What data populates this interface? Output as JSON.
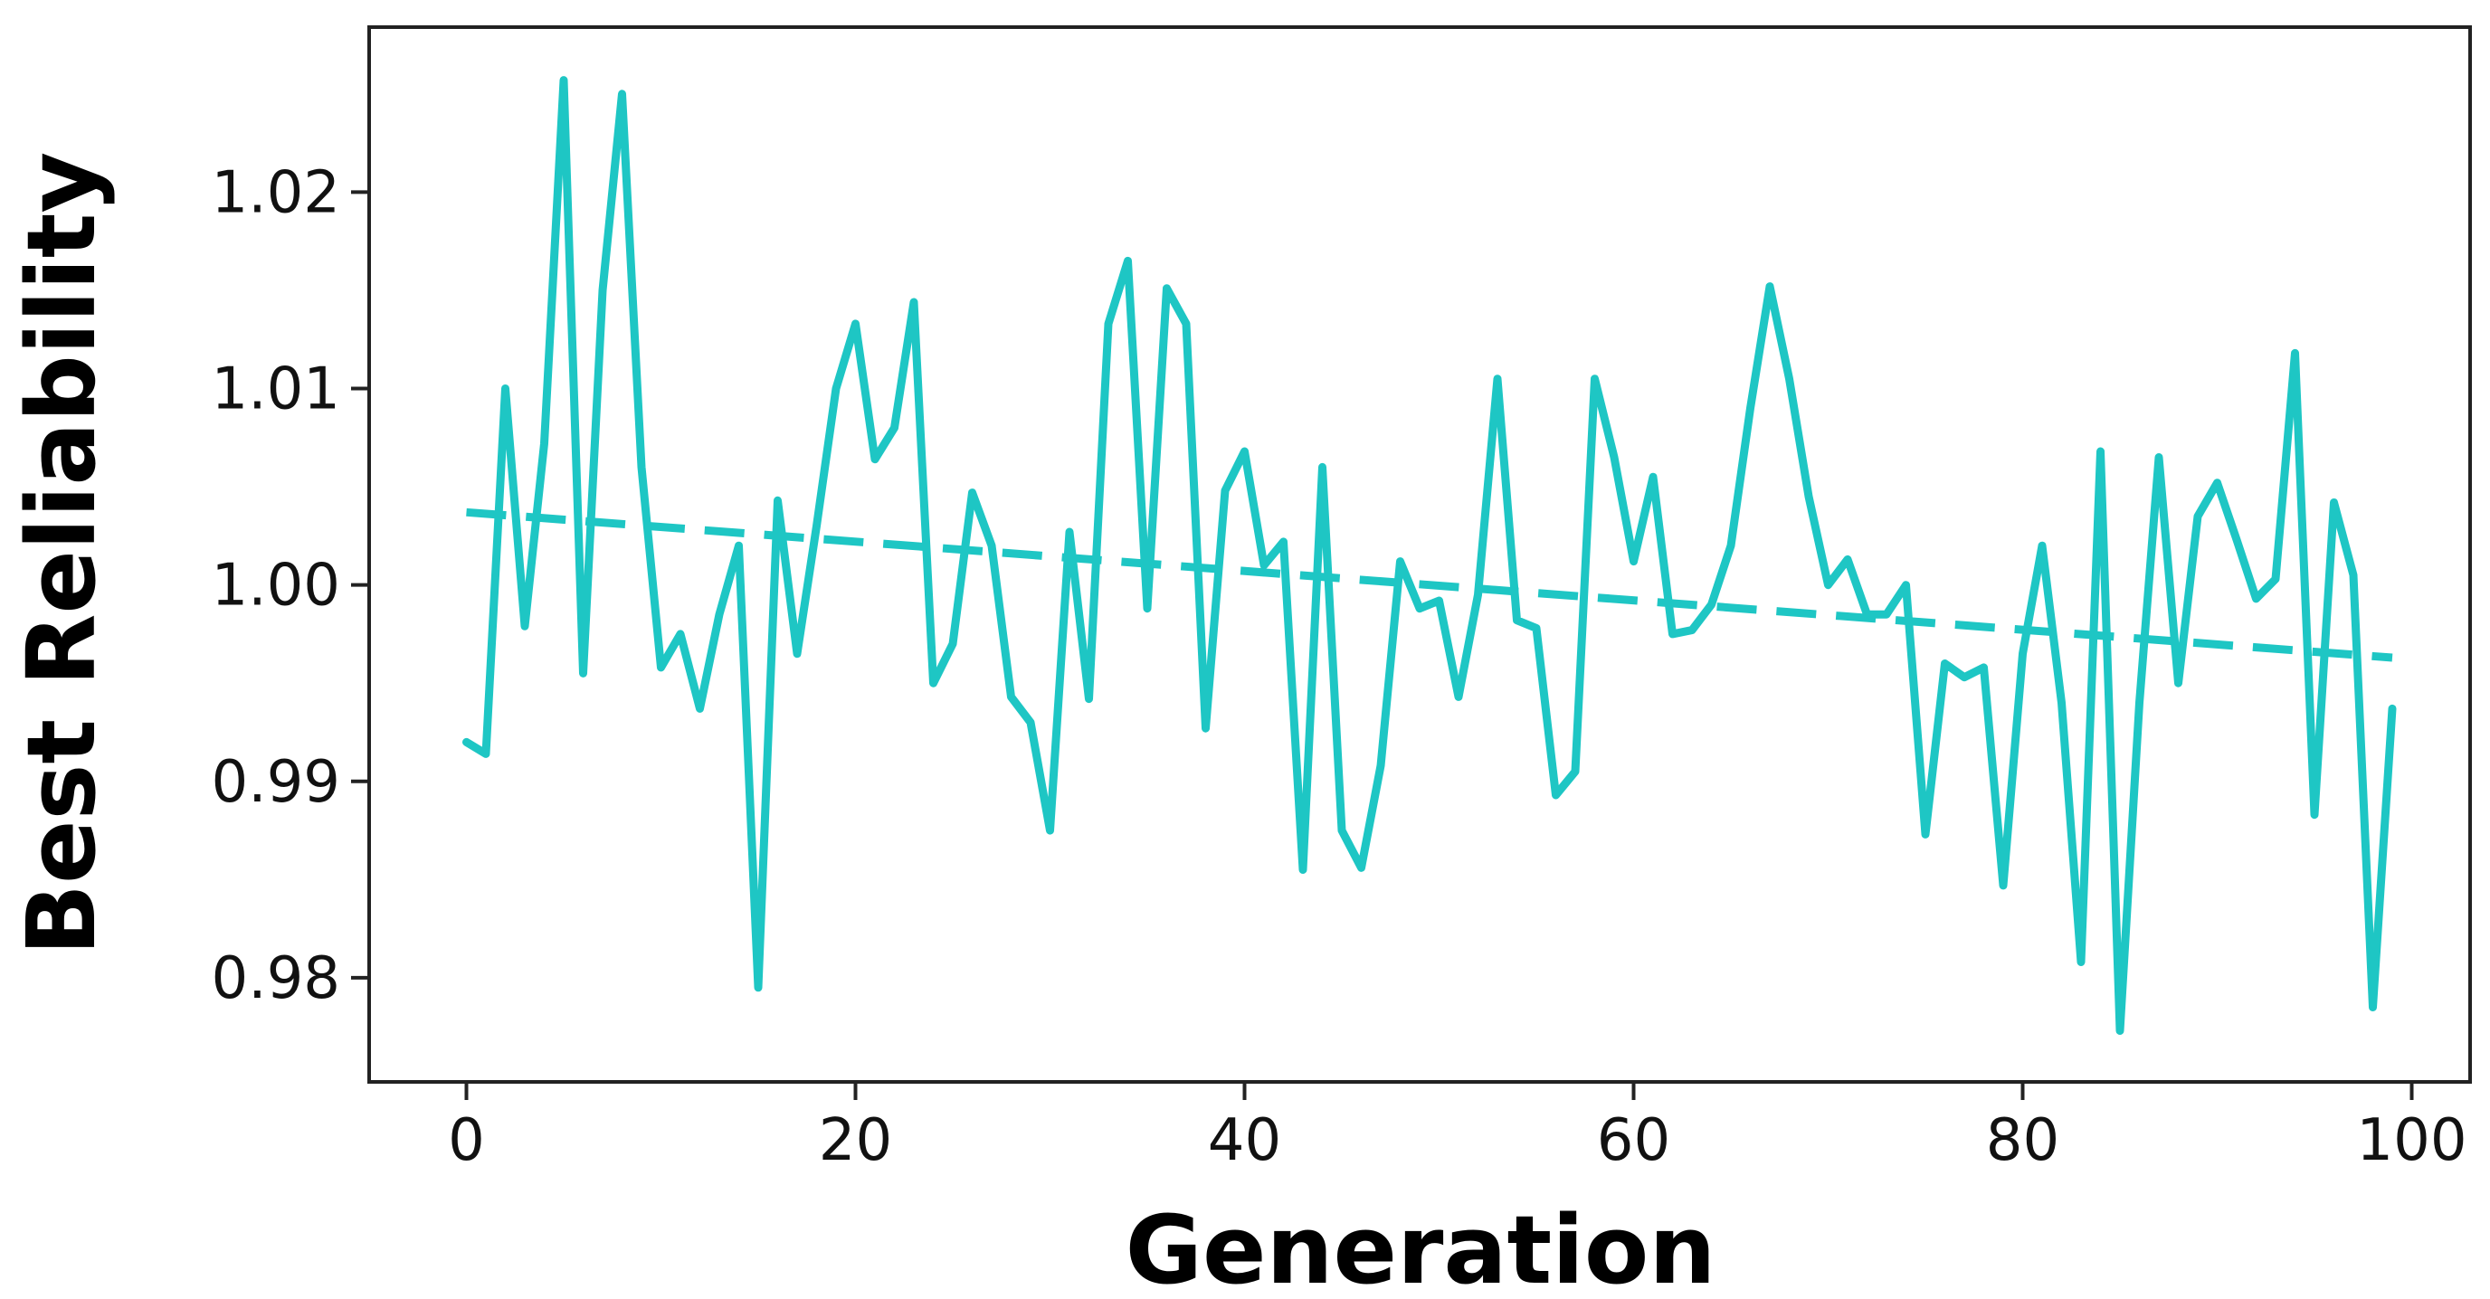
{
  "chart_data": {
    "type": "line",
    "title": "",
    "xlabel": "Generation",
    "ylabel": "Best Reliability",
    "xlim": [
      -5,
      103
    ],
    "ylim": [
      0.9747,
      1.0284
    ],
    "x_ticks": [
      0,
      20,
      40,
      60,
      80,
      100
    ],
    "x_tick_labels": [
      "0",
      "20",
      "40",
      "60",
      "80",
      "100"
    ],
    "y_ticks": [
      0.98,
      0.99,
      1.0,
      1.01,
      1.02
    ],
    "y_tick_labels": [
      "0.98",
      "0.99",
      "1.00",
      "1.01",
      "1.02"
    ],
    "grid": false,
    "legend": "none",
    "colors": {
      "series": "#1ec6c4",
      "axis": "#222222"
    },
    "series": [
      {
        "style": "solid",
        "x": [
          0,
          1,
          2,
          3,
          4,
          5,
          6,
          7,
          8,
          9,
          10,
          11,
          12,
          13,
          14,
          15,
          16,
          17,
          18,
          19,
          20,
          21,
          22,
          23,
          24,
          25,
          26,
          27,
          28,
          29,
          30,
          31,
          32,
          33,
          34,
          35,
          36,
          37,
          38,
          39,
          40,
          41,
          42,
          43,
          44,
          45,
          46,
          47,
          48,
          49,
          50,
          51,
          52,
          53,
          54,
          55,
          56,
          57,
          58,
          59,
          60,
          61,
          62,
          63,
          64,
          65,
          66,
          67,
          68,
          69,
          70,
          71,
          72,
          73,
          74,
          75,
          76,
          77,
          78,
          79,
          80,
          81,
          82,
          83,
          84,
          85,
          86,
          87,
          88,
          89,
          90,
          91,
          92,
          93,
          94,
          95,
          96,
          97,
          98,
          99
        ],
        "values": [
          0.992,
          0.9914,
          1.01,
          0.9979,
          1.0072,
          1.0257,
          0.9955,
          1.015,
          1.025,
          1.006,
          0.9958,
          0.9975,
          0.9937,
          0.9985,
          1.002,
          0.9795,
          1.0043,
          0.9965,
          1.003,
          1.01,
          1.0133,
          1.0064,
          1.008,
          1.0144,
          0.995,
          0.997,
          1.0047,
          1.002,
          0.9943,
          0.993,
          0.9875,
          1.0027,
          0.9942,
          1.0133,
          1.0165,
          0.9988,
          1.0151,
          1.0133,
          0.9927,
          1.0048,
          1.0068,
          1.001,
          1.0022,
          0.9855,
          1.006,
          0.9875,
          0.9856,
          0.9908,
          1.0012,
          0.9988,
          0.9992,
          0.9943,
          0.9995,
          1.0105,
          0.9982,
          0.9978,
          0.9893,
          0.9905,
          1.0105,
          1.0065,
          1.0012,
          1.0055,
          0.9975,
          0.9977,
          0.999,
          1.002,
          1.009,
          1.0152,
          1.0105,
          1.0045,
          1.0,
          1.0013,
          0.9985,
          0.9985,
          1.0,
          0.9873,
          0.996,
          0.9953,
          0.9958,
          0.9847,
          0.9965,
          1.002,
          0.994,
          0.9808,
          1.0068,
          0.9773,
          0.994,
          1.0065,
          0.995,
          1.0035,
          1.0052,
          1.0023,
          0.9993,
          1.0003,
          1.0118,
          0.9883,
          1.0042,
          1.0005,
          0.9785,
          0.9937
        ]
      },
      {
        "style": "dashed",
        "x": [
          0,
          99
        ],
        "values": [
          1.0037,
          0.9963
        ]
      }
    ]
  }
}
